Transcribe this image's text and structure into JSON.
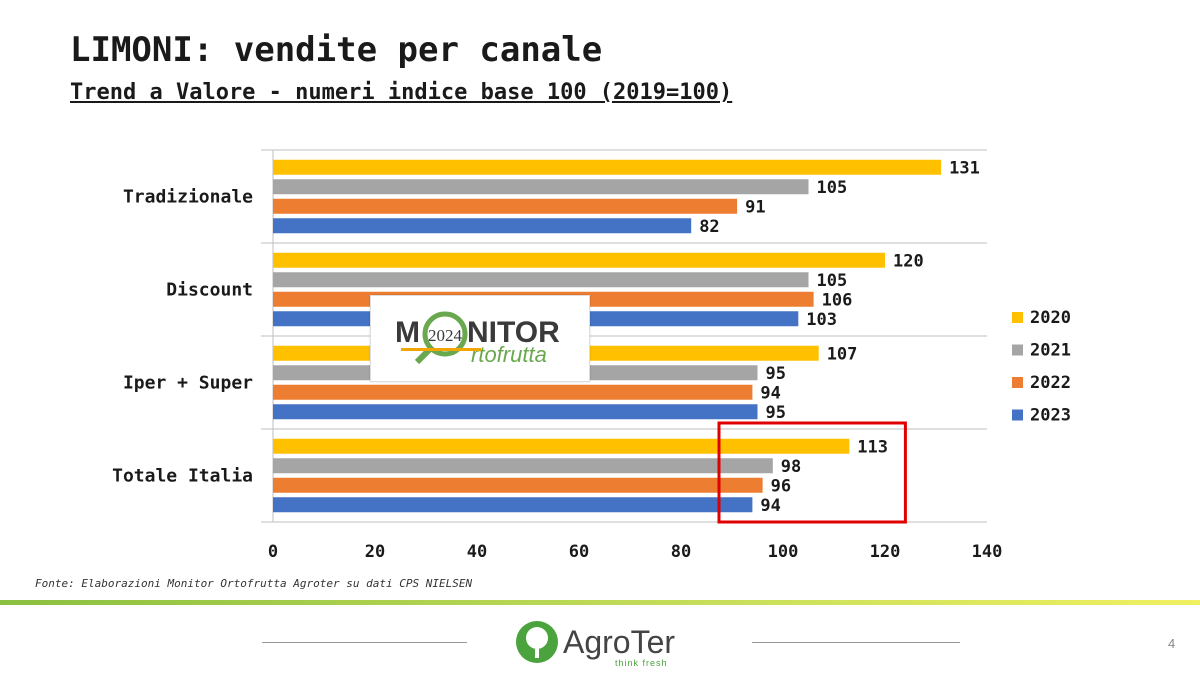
{
  "page": {
    "title": "LIMONI: vendite per canale",
    "subtitle": "Trend a Valore - numeri indice base 100 (2019=100)",
    "source": "Fonte: Elaborazioni Monitor Ortofrutta Agroter su dati CPS NIELSEN",
    "page_number": "4"
  },
  "logos": {
    "monitor": {
      "word_start": "M",
      "word_end": "NITOR",
      "year": "2024",
      "sub": "rtofrutta"
    },
    "agroter": {
      "name": "AgroTer",
      "tagline": "think fresh"
    }
  },
  "colors": {
    "2020": "#ffc000",
    "2021": "#a5a5a5",
    "2022": "#ed7d31",
    "2023": "#4472c4",
    "highlight": "#e00000"
  },
  "chart_data": {
    "type": "bar",
    "orientation": "horizontal",
    "categories": [
      "Tradizionale",
      "Discount",
      "Iper + Super",
      "Totale Italia"
    ],
    "series": [
      {
        "name": "2020",
        "values": [
          131,
          120,
          107,
          113
        ]
      },
      {
        "name": "2021",
        "values": [
          105,
          105,
          95,
          98
        ]
      },
      {
        "name": "2022",
        "values": [
          91,
          106,
          94,
          96
        ]
      },
      {
        "name": "2023",
        "values": [
          82,
          103,
          95,
          94
        ]
      }
    ],
    "xlim": [
      0,
      140
    ],
    "xticks": [
      0,
      20,
      40,
      60,
      80,
      100,
      120,
      140
    ],
    "legend_position": "right",
    "grid": false,
    "highlight": {
      "category": "Totale Italia",
      "x_from": 90,
      "x_to": 124
    }
  }
}
